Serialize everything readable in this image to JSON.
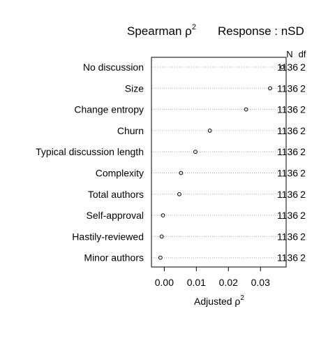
{
  "chart_data": {
    "type": "dot",
    "title": {
      "left_prefix": "Spearman ρ",
      "left_superscript": "2",
      "right": "Response : nSD"
    },
    "xlabel": "Adjusted ρ",
    "xlabel_superscript": "2",
    "xlim": [
      -0.004,
      0.038
    ],
    "xticks": [
      0.0,
      0.01,
      0.02,
      0.03
    ],
    "xtick_labels": [
      "0.00",
      "0.01",
      "0.02",
      "0.03"
    ],
    "grid": "dotted horizontal guide lines",
    "column_headers": {
      "n": "N",
      "df": "df"
    },
    "rows": [
      {
        "label": "No discussion",
        "value": 0.0368,
        "n": "1136",
        "df": "2"
      },
      {
        "label": "Size",
        "value": 0.033,
        "n": "1136",
        "df": "2"
      },
      {
        "label": "Change entropy",
        "value": 0.0255,
        "n": "1136",
        "df": "2"
      },
      {
        "label": "Churn",
        "value": 0.0142,
        "n": "1136",
        "df": "2"
      },
      {
        "label": "Typical discussion length",
        "value": 0.0097,
        "n": "1136",
        "df": "2"
      },
      {
        "label": "Complexity",
        "value": 0.0052,
        "n": "1136",
        "df": "2"
      },
      {
        "label": "Total authors",
        "value": 0.0047,
        "n": "1136",
        "df": "2"
      },
      {
        "label": "Self-approval",
        "value": -0.0004,
        "n": "1136",
        "df": "2"
      },
      {
        "label": "Hastily-reviewed",
        "value": -0.0008,
        "n": "1136",
        "df": "2"
      },
      {
        "label": "Minor authors",
        "value": -0.0012,
        "n": "1136",
        "df": "2"
      }
    ]
  }
}
